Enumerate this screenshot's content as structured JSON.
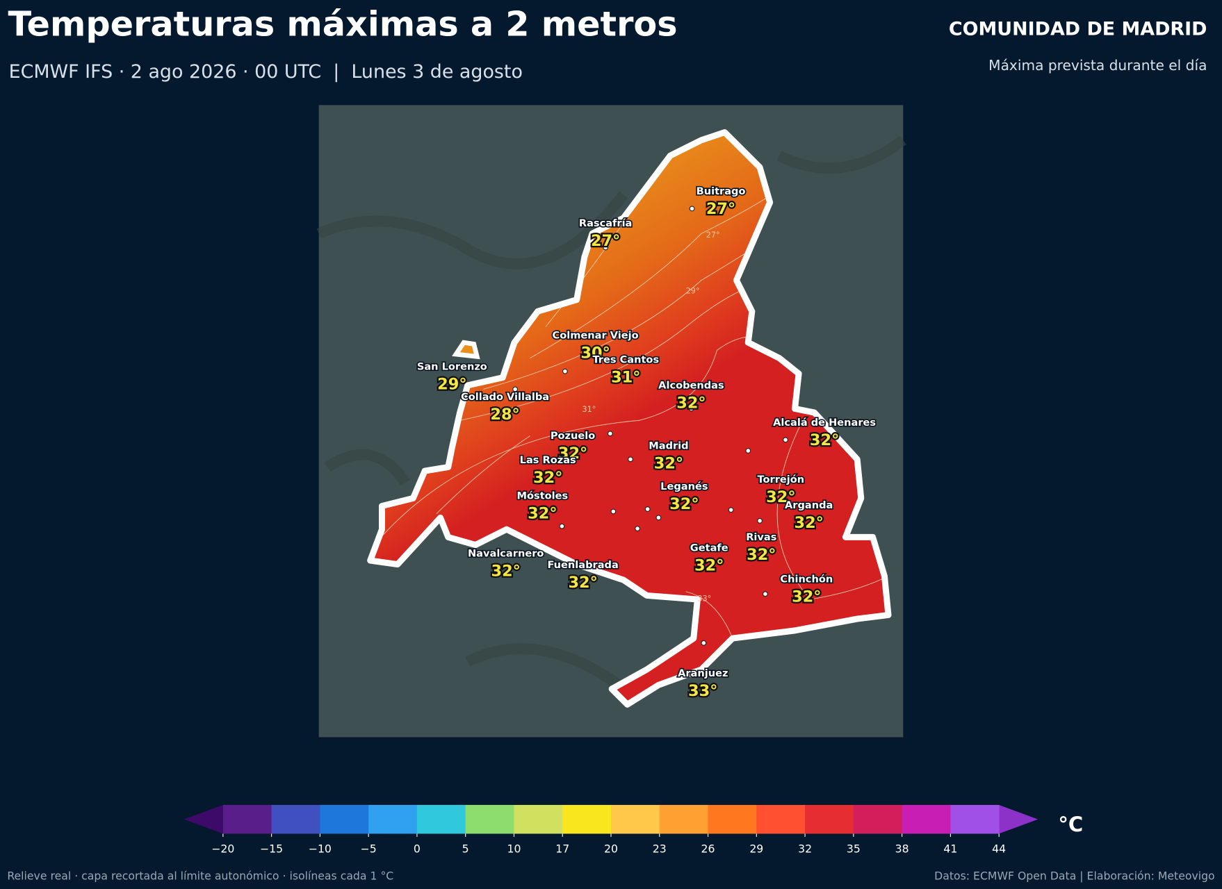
{
  "header": {
    "title": "Temperaturas máximas a 2 metros",
    "subtitle": "ECMWF IFS · 2 ago 2026 · 00 UTC  |  Lunes 3 de agosto",
    "region": "COMUNIDAD DE MADRID",
    "region_note": "Máxima prevista durante el día"
  },
  "cities": [
    {
      "name": "Buitrago",
      "temp": "27°"
    },
    {
      "name": "Rascafría",
      "temp": "27°"
    },
    {
      "name": "Colmenar Viejo",
      "temp": "30°"
    },
    {
      "name": "Tres Cantos",
      "temp": "31°"
    },
    {
      "name": "San Lorenzo",
      "temp": "29°"
    },
    {
      "name": "Collado Villalba",
      "temp": "28°"
    },
    {
      "name": "Alcobendas",
      "temp": "32°"
    },
    {
      "name": "Alcalá de Henares",
      "temp": "32°"
    },
    {
      "name": "Pozuelo",
      "temp": "32°"
    },
    {
      "name": "Madrid",
      "temp": "32°"
    },
    {
      "name": "Las Rozas",
      "temp": "32°"
    },
    {
      "name": "Torrejón",
      "temp": "32°"
    },
    {
      "name": "Leganés",
      "temp": "32°"
    },
    {
      "name": "Móstoles",
      "temp": "32°"
    },
    {
      "name": "Arganda",
      "temp": "32°"
    },
    {
      "name": "Rivas",
      "temp": "32°"
    },
    {
      "name": "Getafe",
      "temp": "32°"
    },
    {
      "name": "Navalcarnero",
      "temp": "32°"
    },
    {
      "name": "Fuenlabrada",
      "temp": "32°"
    },
    {
      "name": "Chinchón",
      "temp": "32°"
    },
    {
      "name": "Aranjuez",
      "temp": "33°"
    }
  ],
  "isoline_labels": [
    "27°",
    "29°",
    "31°",
    "33°"
  ],
  "colorbar": {
    "unit": "°C",
    "ticks": [
      {
        "value": -20,
        "label": "−20"
      },
      {
        "value": -15,
        "label": "−15"
      },
      {
        "value": -10,
        "label": "−10"
      },
      {
        "value": -5,
        "label": "−5"
      },
      0,
      5,
      10,
      17,
      20,
      23,
      26,
      29,
      32,
      35,
      38,
      41,
      44
    ],
    "colors": [
      "#5a1e8a",
      "#4050c0",
      "#1e78dc",
      "#30a0f0",
      "#30c8dc",
      "#8cdc6e",
      "#d2e060",
      "#fae61e",
      "#ffc84a",
      "#ffa032",
      "#ff7820",
      "#ff5032",
      "#e62d32",
      "#d21e5a",
      "#c81eb4",
      "#a050e6"
    ],
    "under_color": "#3e0a6a",
    "over_color": "#8c32c8"
  },
  "footer": {
    "left": "Relieve real · capa recortada al límite autonómico · isolíneas cada 1 °C",
    "right": "Datos: ECMWF Open Data | Elaboración: Meteovigo"
  }
}
